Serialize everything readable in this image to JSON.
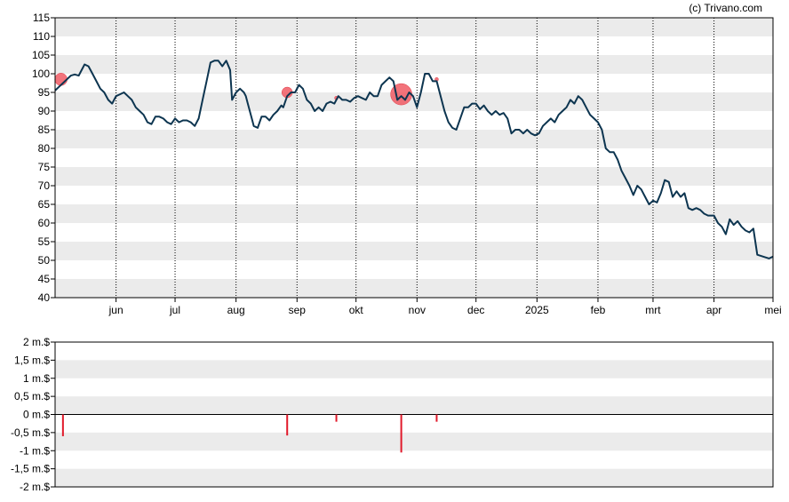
{
  "credit": "(c) Trivano.com",
  "colors": {
    "band": "#ebebeb",
    "line": "#0d3550",
    "marker": "#f05a64",
    "bar": "#e11a2b"
  },
  "chart_data": [
    {
      "type": "line",
      "title": "",
      "xlabel": "",
      "ylabel": "",
      "ylim": [
        40,
        115
      ],
      "yticks": [
        40,
        45,
        50,
        55,
        60,
        65,
        70,
        75,
        80,
        85,
        90,
        95,
        100,
        105,
        110,
        115
      ],
      "ytick_labels": [
        "40",
        "45",
        "50",
        "55",
        "60",
        "65",
        "70",
        "75",
        "80",
        "85",
        "90",
        "95",
        "100",
        "105",
        "110",
        "115"
      ],
      "xlim": [
        "2024-05-01",
        "2025-05-01"
      ],
      "month_ticks": [
        {
          "date": "2024-06-01",
          "label": "jun"
        },
        {
          "date": "2024-07-01",
          "label": "jul"
        },
        {
          "date": "2024-08-01",
          "label": "aug"
        },
        {
          "date": "2024-09-01",
          "label": "sep"
        },
        {
          "date": "2024-10-01",
          "label": "okt"
        },
        {
          "date": "2024-11-01",
          "label": "nov"
        },
        {
          "date": "2024-12-01",
          "label": "dec"
        },
        {
          "date": "2025-01-01",
          "label": "2025"
        },
        {
          "date": "2025-02-01",
          "label": "feb"
        },
        {
          "date": "2025-03-01",
          "label": "mrt"
        },
        {
          "date": "2025-04-01",
          "label": "apr"
        },
        {
          "date": "2025-05-01",
          "label": "mei"
        }
      ],
      "grid": "dotted vertical lines at month ticks; alternating horizontal bands",
      "series": [
        {
          "points": [
            [
              "2024-05-01",
              95.5
            ],
            [
              "2024-05-03",
              96.5
            ],
            [
              "2024-05-05",
              97.5
            ],
            [
              "2024-05-07",
              98.5
            ],
            [
              "2024-05-09",
              99.5
            ],
            [
              "2024-05-11",
              99.8
            ],
            [
              "2024-05-13",
              99.5
            ],
            [
              "2024-05-14",
              100.5
            ],
            [
              "2024-05-16",
              102.5
            ],
            [
              "2024-05-18",
              102
            ],
            [
              "2024-05-20",
              100
            ],
            [
              "2024-05-22",
              98
            ],
            [
              "2024-05-24",
              96
            ],
            [
              "2024-05-26",
              95
            ],
            [
              "2024-05-28",
              93
            ],
            [
              "2024-05-30",
              92
            ],
            [
              "2024-06-01",
              94
            ],
            [
              "2024-06-03",
              94.5
            ],
            [
              "2024-06-05",
              95
            ],
            [
              "2024-06-07",
              94
            ],
            [
              "2024-06-09",
              93
            ],
            [
              "2024-06-11",
              91
            ],
            [
              "2024-06-13",
              90
            ],
            [
              "2024-06-15",
              89
            ],
            [
              "2024-06-17",
              87
            ],
            [
              "2024-06-19",
              86.5
            ],
            [
              "2024-06-21",
              88.5
            ],
            [
              "2024-06-23",
              88.5
            ],
            [
              "2024-06-25",
              88
            ],
            [
              "2024-06-27",
              87
            ],
            [
              "2024-06-29",
              86.5
            ],
            [
              "2024-07-01",
              88
            ],
            [
              "2024-07-03",
              87
            ],
            [
              "2024-07-05",
              87.5
            ],
            [
              "2024-07-07",
              87.5
            ],
            [
              "2024-07-09",
              87
            ],
            [
              "2024-07-11",
              86
            ],
            [
              "2024-07-13",
              88
            ],
            [
              "2024-07-15",
              93
            ],
            [
              "2024-07-17",
              98
            ],
            [
              "2024-07-19",
              103
            ],
            [
              "2024-07-21",
              103.5
            ],
            [
              "2024-07-23",
              103.5
            ],
            [
              "2024-07-25",
              102
            ],
            [
              "2024-07-27",
              103.5
            ],
            [
              "2024-07-29",
              101
            ],
            [
              "2024-07-30",
              93
            ],
            [
              "2024-08-01",
              95
            ],
            [
              "2024-08-03",
              96
            ],
            [
              "2024-08-05",
              95
            ],
            [
              "2024-08-06",
              94
            ],
            [
              "2024-08-07",
              92
            ],
            [
              "2024-08-09",
              88
            ],
            [
              "2024-08-10",
              86
            ],
            [
              "2024-08-12",
              85.5
            ],
            [
              "2024-08-14",
              88.5
            ],
            [
              "2024-08-16",
              88.5
            ],
            [
              "2024-08-18",
              87.5
            ],
            [
              "2024-08-20",
              89
            ],
            [
              "2024-08-22",
              90
            ],
            [
              "2024-08-24",
              91.5
            ],
            [
              "2024-08-25",
              91
            ],
            [
              "2024-08-27",
              94
            ],
            [
              "2024-08-29",
              95
            ],
            [
              "2024-08-31",
              95
            ],
            [
              "2024-09-02",
              97
            ],
            [
              "2024-09-04",
              96
            ],
            [
              "2024-09-06",
              93
            ],
            [
              "2024-09-08",
              92
            ],
            [
              "2024-09-10",
              90
            ],
            [
              "2024-09-12",
              91
            ],
            [
              "2024-09-14",
              90
            ],
            [
              "2024-09-16",
              92
            ],
            [
              "2024-09-18",
              92.5
            ],
            [
              "2024-09-20",
              92
            ],
            [
              "2024-09-22",
              94
            ],
            [
              "2024-09-24",
              93
            ],
            [
              "2024-09-26",
              93
            ],
            [
              "2024-09-28",
              92.5
            ],
            [
              "2024-09-30",
              93.5
            ],
            [
              "2024-10-02",
              94
            ],
            [
              "2024-10-04",
              93.5
            ],
            [
              "2024-10-06",
              93
            ],
            [
              "2024-10-08",
              95
            ],
            [
              "2024-10-10",
              94
            ],
            [
              "2024-10-12",
              94
            ],
            [
              "2024-10-14",
              97
            ],
            [
              "2024-10-16",
              98
            ],
            [
              "2024-10-18",
              99
            ],
            [
              "2024-10-20",
              98
            ],
            [
              "2024-10-22",
              93
            ],
            [
              "2024-10-24",
              94
            ],
            [
              "2024-10-26",
              93
            ],
            [
              "2024-10-28",
              95
            ],
            [
              "2024-10-30",
              94
            ],
            [
              "2024-11-01",
              91
            ],
            [
              "2024-11-03",
              95
            ],
            [
              "2024-11-05",
              100
            ],
            [
              "2024-11-07",
              100
            ],
            [
              "2024-11-09",
              98
            ],
            [
              "2024-11-11",
              98
            ],
            [
              "2024-11-13",
              94
            ],
            [
              "2024-11-15",
              90
            ],
            [
              "2024-11-17",
              87
            ],
            [
              "2024-11-19",
              85.5
            ],
            [
              "2024-11-21",
              85
            ],
            [
              "2024-11-23",
              88
            ],
            [
              "2024-11-25",
              91
            ],
            [
              "2024-11-27",
              91
            ],
            [
              "2024-11-29",
              92
            ],
            [
              "2024-12-01",
              92
            ],
            [
              "2024-12-03",
              90.5
            ],
            [
              "2024-12-05",
              91.5
            ],
            [
              "2024-12-07",
              90
            ],
            [
              "2024-12-09",
              89
            ],
            [
              "2024-12-11",
              90
            ],
            [
              "2024-12-13",
              89
            ],
            [
              "2024-12-15",
              89.5
            ],
            [
              "2024-12-17",
              88
            ],
            [
              "2024-12-19",
              84
            ],
            [
              "2024-12-21",
              85
            ],
            [
              "2024-12-23",
              85
            ],
            [
              "2024-12-25",
              84
            ],
            [
              "2024-12-27",
              85
            ],
            [
              "2024-12-29",
              84
            ],
            [
              "2024-12-31",
              83.5
            ],
            [
              "2025-01-02",
              84
            ],
            [
              "2025-01-04",
              86
            ],
            [
              "2025-01-06",
              87
            ],
            [
              "2025-01-08",
              88
            ],
            [
              "2025-01-10",
              87
            ],
            [
              "2025-01-12",
              89
            ],
            [
              "2025-01-14",
              90
            ],
            [
              "2025-01-16",
              91
            ],
            [
              "2025-01-18",
              93
            ],
            [
              "2025-01-20",
              92
            ],
            [
              "2025-01-22",
              94
            ],
            [
              "2025-01-24",
              93
            ],
            [
              "2025-01-26",
              91
            ],
            [
              "2025-01-28",
              89
            ],
            [
              "2025-01-30",
              88
            ],
            [
              "2025-02-01",
              87
            ],
            [
              "2025-02-03",
              85
            ],
            [
              "2025-02-05",
              80
            ],
            [
              "2025-02-07",
              79
            ],
            [
              "2025-02-09",
              79
            ],
            [
              "2025-02-11",
              77
            ],
            [
              "2025-02-13",
              74
            ],
            [
              "2025-02-15",
              72
            ],
            [
              "2025-02-17",
              70
            ],
            [
              "2025-02-19",
              67.5
            ],
            [
              "2025-02-21",
              70
            ],
            [
              "2025-02-23",
              69
            ],
            [
              "2025-02-25",
              67
            ],
            [
              "2025-02-27",
              65
            ],
            [
              "2025-03-01",
              66
            ],
            [
              "2025-03-03",
              65.5
            ],
            [
              "2025-03-05",
              68
            ],
            [
              "2025-03-07",
              71.5
            ],
            [
              "2025-03-09",
              71
            ],
            [
              "2025-03-11",
              67
            ],
            [
              "2025-03-13",
              68.5
            ],
            [
              "2025-03-15",
              67
            ],
            [
              "2025-03-17",
              68
            ],
            [
              "2025-03-19",
              64
            ],
            [
              "2025-03-21",
              63.5
            ],
            [
              "2025-03-23",
              64
            ],
            [
              "2025-03-25",
              63.5
            ],
            [
              "2025-03-27",
              62.5
            ],
            [
              "2025-03-29",
              62
            ],
            [
              "2025-04-01",
              62
            ],
            [
              "2025-04-03",
              60
            ],
            [
              "2025-04-05",
              59
            ],
            [
              "2025-04-07",
              57
            ],
            [
              "2025-04-09",
              61
            ],
            [
              "2025-04-11",
              59.5
            ],
            [
              "2025-04-13",
              60.5
            ],
            [
              "2025-04-15",
              59
            ],
            [
              "2025-04-17",
              58
            ],
            [
              "2025-04-19",
              57.5
            ],
            [
              "2025-04-21",
              58.5
            ],
            [
              "2025-04-23",
              51.5
            ],
            [
              "2025-04-26",
              51
            ],
            [
              "2025-04-29",
              50.5
            ],
            [
              "2025-05-01",
              51
            ]
          ]
        }
      ],
      "markers": [
        {
          "date": "2024-05-04",
          "value": 98.5,
          "size": 7
        },
        {
          "date": "2024-08-27",
          "value": 95,
          "size": 6
        },
        {
          "date": "2024-09-21",
          "value": 93.5,
          "size": 2
        },
        {
          "date": "2024-10-24",
          "value": 94.5,
          "size": 12
        },
        {
          "date": "2024-11-11",
          "value": 98.5,
          "size": 2
        }
      ]
    },
    {
      "type": "bar",
      "title": "",
      "xlabel": "",
      "ylabel": "",
      "ylim": [
        -2000000,
        2000000
      ],
      "yticks": [
        -2000000,
        -1500000,
        -1000000,
        -500000,
        0,
        500000,
        1000000,
        1500000,
        2000000
      ],
      "ytick_labels": [
        "-2 m.$",
        "-1,5 m.$",
        "-1 m.$",
        "-0,5 m.$",
        "0 m.$",
        "0,5 m.$",
        "1 m.$",
        "1,5 m.$",
        "2 m.$"
      ],
      "bars": [
        {
          "date": "2024-05-05",
          "value": -600000
        },
        {
          "date": "2024-08-27",
          "value": -580000
        },
        {
          "date": "2024-09-21",
          "value": -200000
        },
        {
          "date": "2024-10-24",
          "value": -1050000
        },
        {
          "date": "2024-11-11",
          "value": -200000
        }
      ]
    }
  ]
}
